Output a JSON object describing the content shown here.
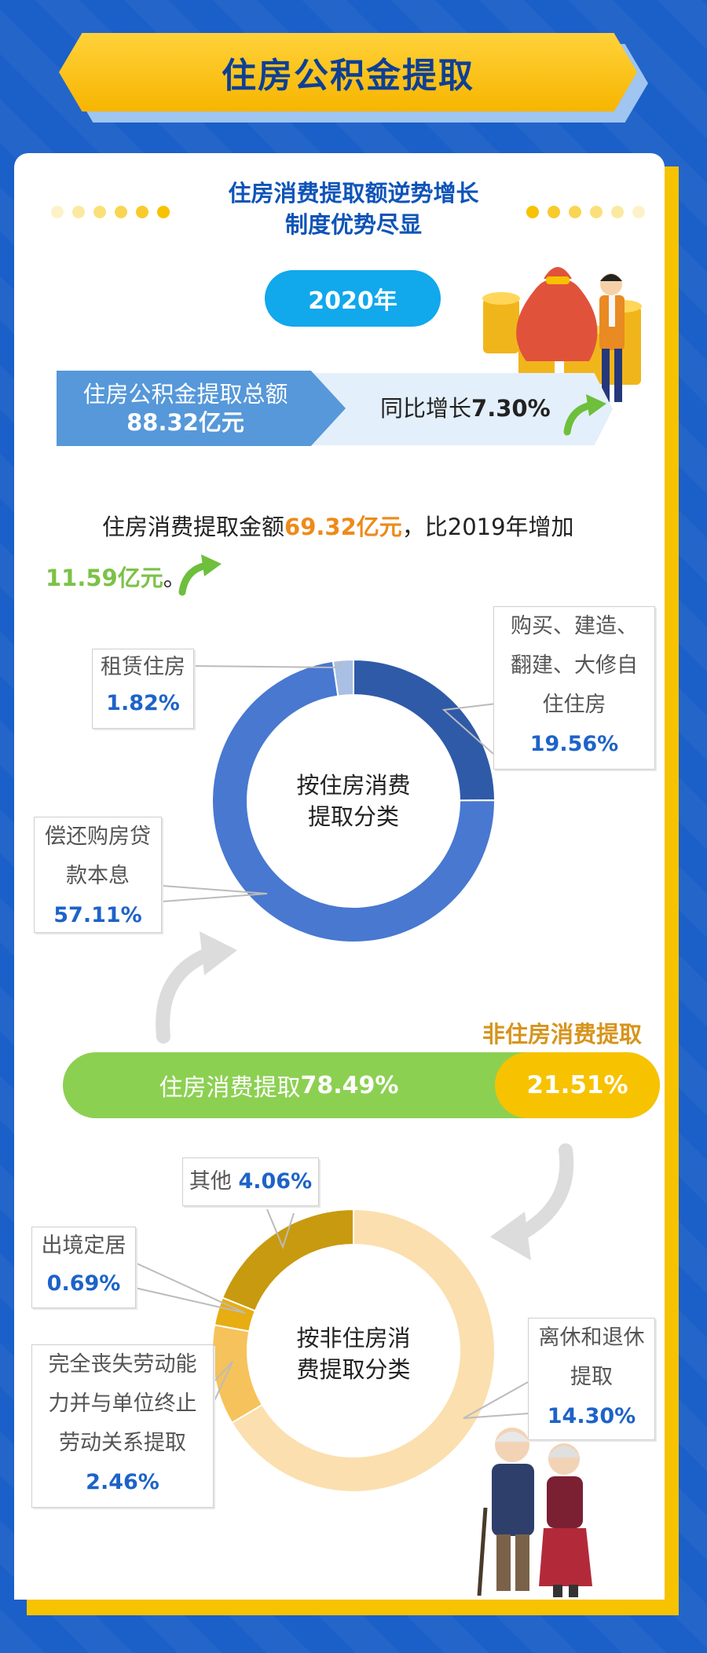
{
  "header": {
    "title": "住房公积金提取"
  },
  "subtitle": {
    "line1": "住房消费提取额逆势增长",
    "line2": "制度优势尽显"
  },
  "year": "2020年",
  "total": {
    "label": "住房公积金提取总额",
    "value": "88.32亿元"
  },
  "growth": {
    "prefix": "同比增长",
    "value": "7.30%"
  },
  "sentence": {
    "prefix": "住房消费提取金额",
    "amount": "69.32亿元",
    "suffix": "，比2019年增加",
    "increase": "11.59亿元",
    "end": "。"
  },
  "split_bar": {
    "housing_label": "住房消费提取",
    "housing_pct": "78.49%",
    "non_housing_pct": "21.51%",
    "non_housing_title": "非住房消费提取"
  },
  "colors": {
    "primary_blue": "#4878d0",
    "dark_blue": "#2f5aa8",
    "light_blue": "#a9bfe4",
    "green": "#8cd052",
    "yellow": "#f7c200",
    "orange_text": "#ee8a1a"
  },
  "icons": [
    "money-bag-icon",
    "coin-stack-icon",
    "businessman-icon",
    "elderly-couple-icon",
    "up-arrow-icon",
    "curved-arrow-icon"
  ],
  "chart_data": [
    {
      "type": "pie",
      "title": "按住房消费提取分类",
      "slices": [
        {
          "label": "购买、建造、翻建、大修自住住房",
          "line1": "购买、建造、",
          "line2": "翻建、大修自",
          "line3": "住住房",
          "pct_text": "19.56%",
          "value": 19.56,
          "color": "#2f5aa8"
        },
        {
          "label": "偿还购房贷款本息",
          "line1": "偿还购房贷",
          "line2": "款本息",
          "pct_text": "57.11%",
          "value": 57.11,
          "color": "#4878d0"
        },
        {
          "label": "租赁住房",
          "line1": "租赁住房",
          "pct_text": "1.82%",
          "value": 1.82,
          "color": "#a9bfe4"
        }
      ]
    },
    {
      "type": "pie",
      "title": "按非住房消费提取分类",
      "slices": [
        {
          "label": "离休和退休提取",
          "line1": "离休和退休",
          "line2": "提取",
          "pct_text": "14.30%",
          "value": 14.3,
          "color": "#fbdfae"
        },
        {
          "label": "完全丧失劳动能力并与单位终止劳动关系提取",
          "line1": "完全丧失劳动能",
          "line2": "力并与单位终止",
          "line3": "劳动关系提取",
          "pct_text": "2.46%",
          "value": 2.46,
          "color": "#f6c25b"
        },
        {
          "label": "出境定居",
          "line1": "出境定居",
          "pct_text": "0.69%",
          "value": 0.69,
          "color": "#e8ad12"
        },
        {
          "label": "其他",
          "line1": "其他",
          "pct_text": "4.06%",
          "value": 4.06,
          "color": "#c89a0f"
        }
      ]
    }
  ]
}
